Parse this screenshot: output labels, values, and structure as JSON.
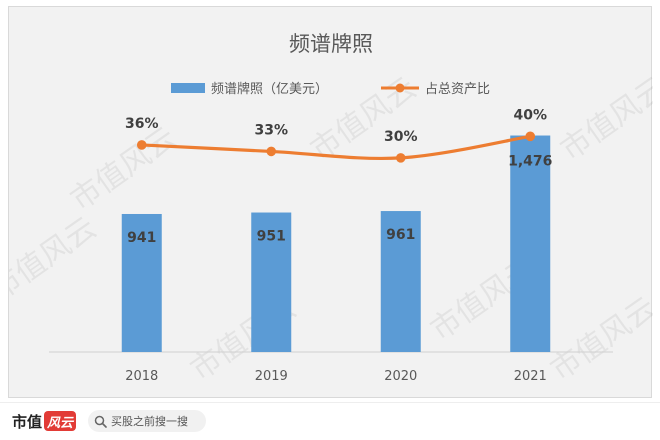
{
  "chart_data": {
    "type": "bar",
    "title": "频谱牌照",
    "categories": [
      "2018",
      "2019",
      "2020",
      "2021"
    ],
    "series": [
      {
        "name": "频谱牌照（亿美元）",
        "kind": "bar",
        "values": [
          941,
          951,
          961,
          1476
        ],
        "labels": [
          "941",
          "951",
          "961",
          "1,476"
        ],
        "color": "#5b9bd5"
      },
      {
        "name": "占总资产比",
        "kind": "line",
        "values": [
          36,
          33,
          30,
          40
        ],
        "labels": [
          "36%",
          "33%",
          "30%",
          "40%"
        ],
        "unit": "%",
        "color": "#ed7d31"
      }
    ],
    "bar_axis_range": [
      0,
      1500
    ],
    "line_axis_range": [
      -60,
      42
    ],
    "grid": false,
    "legend_position": "top"
  },
  "watermark": "市值风云",
  "footer": {
    "brand": "市值",
    "brand_mark": "风云",
    "search_icon": "search-icon",
    "search_text": "买股之前搜一搜"
  }
}
